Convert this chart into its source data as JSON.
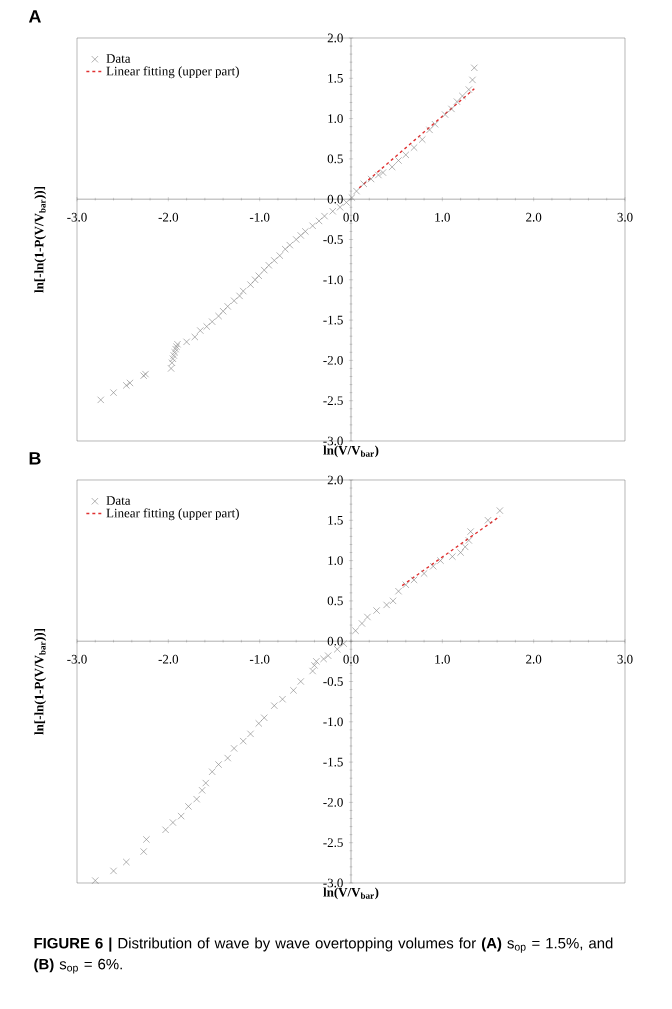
{
  "chart_data": [
    {
      "type": "scatter",
      "title": "A",
      "xlabel": "ln(V/V$_{bar}$)",
      "ylabel": "ln[-ln(1-P(V/V$_{bar}$))]",
      "xlim": [
        -3,
        3
      ],
      "ylim": [
        -3,
        2
      ],
      "xticks": [
        {
          "value": -3,
          "label": "-3.0"
        },
        {
          "value": -2,
          "label": "-2.0"
        },
        {
          "value": -1,
          "label": "-1.0"
        },
        {
          "value": 0,
          "label": "0.0"
        },
        {
          "value": 1,
          "label": "1.0"
        },
        {
          "value": 2,
          "label": "2.0"
        },
        {
          "value": 3,
          "label": "3.0"
        }
      ],
      "yticks": [
        {
          "value": -3,
          "label": "-3.0"
        },
        {
          "value": -2.5,
          "label": "-2.5"
        },
        {
          "value": -2,
          "label": "-2.0"
        },
        {
          "value": -1.5,
          "label": "-1.5"
        },
        {
          "value": -1,
          "label": "-1.0"
        },
        {
          "value": -0.5,
          "label": "-0.5"
        },
        {
          "value": 0,
          "label": "0.0"
        },
        {
          "value": 0.5,
          "label": "0.5"
        },
        {
          "value": 1,
          "label": "1.0"
        },
        {
          "value": 1.5,
          "label": "1.5"
        },
        {
          "value": 2,
          "label": "2.0"
        }
      ],
      "legend": "top left",
      "series": [
        {
          "name": "Data",
          "marker": "cross",
          "color": "#808080",
          "x": [
            -2.74,
            -2.6,
            -2.46,
            -2.42,
            -2.27,
            -2.25,
            -1.97,
            -1.96,
            -1.95,
            -1.94,
            -1.93,
            -1.92,
            -1.91,
            -1.9,
            -1.8,
            -1.71,
            -1.65,
            -1.58,
            -1.52,
            -1.45,
            -1.4,
            -1.35,
            -1.28,
            -1.22,
            -1.18,
            -1.1,
            -1.05,
            -1.01,
            -0.95,
            -0.9,
            -0.84,
            -0.78,
            -0.72,
            -0.67,
            -0.6,
            -0.55,
            -0.5,
            -0.42,
            -0.35,
            -0.29,
            -0.2,
            -0.12,
            -0.05,
            0.01,
            0.06,
            0.14,
            0.22,
            0.3,
            0.35,
            0.45,
            0.52,
            0.6,
            0.69,
            0.78,
            0.86,
            0.92,
            1.03,
            1.1,
            1.16,
            1.22,
            1.29,
            1.33,
            1.35
          ],
          "values": [
            -2.49,
            -2.4,
            -2.31,
            -2.28,
            -2.19,
            -2.17,
            -2.1,
            -2.03,
            -1.98,
            -1.94,
            -1.9,
            -1.86,
            -1.83,
            -1.8,
            -1.77,
            -1.71,
            -1.63,
            -1.58,
            -1.52,
            -1.45,
            -1.39,
            -1.33,
            -1.26,
            -1.2,
            -1.14,
            -1.06,
            -1.0,
            -0.95,
            -0.88,
            -0.82,
            -0.76,
            -0.7,
            -0.62,
            -0.57,
            -0.5,
            -0.45,
            -0.4,
            -0.33,
            -0.27,
            -0.21,
            -0.15,
            -0.1,
            -0.04,
            0.02,
            0.1,
            0.19,
            0.25,
            0.3,
            0.33,
            0.4,
            0.48,
            0.55,
            0.64,
            0.74,
            0.86,
            0.93,
            1.05,
            1.12,
            1.21,
            1.28,
            1.36,
            1.48,
            1.63
          ]
        },
        {
          "name": "Linear fitting (upper part)",
          "type": "line",
          "marker": "none",
          "line_style": "dashed",
          "color": "#e03030",
          "x": [
            0.09,
            1.35
          ],
          "values": [
            0.14,
            1.37
          ]
        }
      ]
    },
    {
      "type": "scatter",
      "title": "B",
      "xlabel": "ln(V/V$_{bar}$)",
      "ylabel": "ln[-ln(1-P(V/V$_{bar}$))]",
      "xlim": [
        -3,
        3
      ],
      "ylim": [
        -3,
        2
      ],
      "xticks": [
        {
          "value": -3,
          "label": "-3.0"
        },
        {
          "value": -2,
          "label": "-2.0"
        },
        {
          "value": -1,
          "label": "-1.0"
        },
        {
          "value": 0,
          "label": "0.0"
        },
        {
          "value": 1,
          "label": "1.0"
        },
        {
          "value": 2,
          "label": "2.0"
        },
        {
          "value": 3,
          "label": "3.0"
        }
      ],
      "yticks": [
        {
          "value": -3,
          "label": "-3.0"
        },
        {
          "value": -2.5,
          "label": "-2.5"
        },
        {
          "value": -2,
          "label": "-2.0"
        },
        {
          "value": -1.5,
          "label": "-1.5"
        },
        {
          "value": -1,
          "label": "-1.0"
        },
        {
          "value": -0.5,
          "label": "-0.5"
        },
        {
          "value": 0,
          "label": "0.0"
        },
        {
          "value": 0.5,
          "label": "0.5"
        },
        {
          "value": 1,
          "label": "1.0"
        },
        {
          "value": 1.5,
          "label": "1.5"
        },
        {
          "value": 2,
          "label": "2.0"
        }
      ],
      "legend": "top left",
      "annotations": [
        "**FIGURE 6 |** Distribution of wave by wave overtopping volumes for **(A)** s$_{op}$ = 1.5%, and **(B)** s$_{op}$ = 6%."
      ],
      "series": [
        {
          "name": "Data",
          "marker": "cross",
          "color": "#808080",
          "x": [
            -2.8,
            -2.6,
            -2.46,
            -2.27,
            -2.24,
            -2.03,
            -1.95,
            -1.86,
            -1.78,
            -1.69,
            -1.63,
            -1.59,
            -1.52,
            -1.45,
            -1.35,
            -1.28,
            -1.18,
            -1.1,
            -1.01,
            -0.95,
            -0.84,
            -0.75,
            -0.63,
            -0.55,
            -0.42,
            -0.4,
            -0.38,
            -0.3,
            -0.25,
            -0.15,
            -0.08,
            0.05,
            0.12,
            0.18,
            0.28,
            0.39,
            0.46,
            0.52,
            0.6,
            0.69,
            0.8,
            0.9,
            0.98,
            1.11,
            1.2,
            1.25,
            1.29,
            1.31,
            1.5,
            1.63
          ],
          "values": [
            -2.97,
            -2.85,
            -2.74,
            -2.61,
            -2.46,
            -2.34,
            -2.25,
            -2.17,
            -2.05,
            -1.96,
            -1.85,
            -1.76,
            -1.62,
            -1.53,
            -1.45,
            -1.33,
            -1.24,
            -1.15,
            -1.02,
            -0.95,
            -0.8,
            -0.72,
            -0.61,
            -0.5,
            -0.37,
            -0.3,
            -0.25,
            -0.22,
            -0.18,
            -0.1,
            -0.03,
            0.13,
            0.22,
            0.3,
            0.38,
            0.45,
            0.5,
            0.62,
            0.7,
            0.76,
            0.84,
            0.93,
            1.0,
            1.05,
            1.1,
            1.17,
            1.25,
            1.36,
            1.5,
            1.62
          ]
        },
        {
          "name": "Linear fitting (upper part)",
          "type": "line",
          "marker": "none",
          "line_style": "dashed",
          "color": "#e03030",
          "x": [
            0.56,
            1.63
          ],
          "values": [
            0.69,
            1.55
          ]
        }
      ]
    }
  ]
}
